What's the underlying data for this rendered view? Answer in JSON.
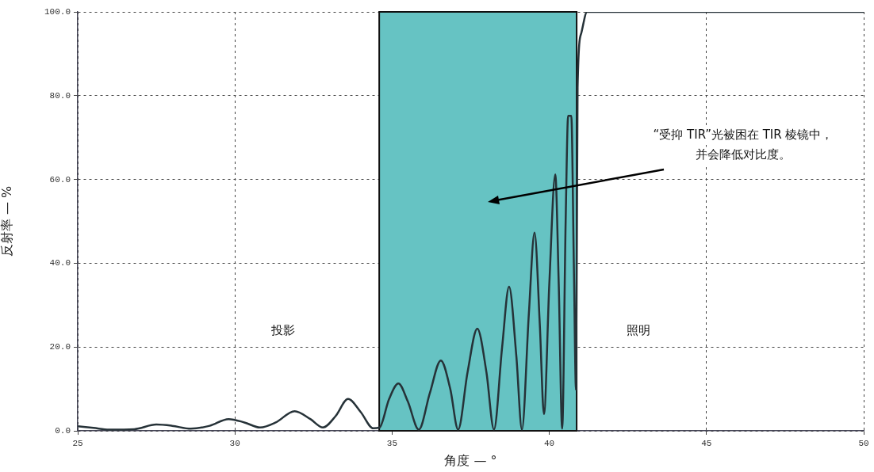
{
  "chart_data": {
    "type": "line",
    "xlabel": "角度 — °",
    "ylabel": "反射率 — %",
    "x": [
      25,
      25.5,
      26,
      26.8,
      27.5,
      28,
      28.6,
      29.2,
      29.8,
      30.3,
      30.8,
      31.3,
      31.9,
      32.4,
      32.8,
      33.2,
      33.6,
      34.0,
      34.4,
      34.6,
      34.9,
      35.2,
      35.5,
      35.85,
      36.2,
      36.55,
      36.85,
      37.1,
      37.4,
      37.71,
      38.0,
      38.24,
      38.5,
      38.72,
      38.95,
      39.13,
      39.35,
      39.53,
      39.7,
      39.83,
      40.0,
      40.19,
      40.3,
      40.41,
      40.52,
      40.6,
      40.7,
      40.78,
      40.85,
      40.9,
      41.02,
      41.2,
      50
    ],
    "series": [
      {
        "color": "#263238",
        "values": [
          1.1,
          0.7,
          0.3,
          0.4,
          1.5,
          1.2,
          0.5,
          1.2,
          2.8,
          2.0,
          0.8,
          2.0,
          4.7,
          2.8,
          0.8,
          3.5,
          7.6,
          4.5,
          0.6,
          0.8,
          7.5,
          11.3,
          7,
          0.3,
          9,
          16.8,
          10,
          0.3,
          14,
          24.4,
          14,
          0.3,
          20,
          34.4,
          18,
          0.3,
          28,
          47.3,
          25,
          4,
          35,
          61.2,
          35,
          0.5,
          50,
          75.2,
          75.2,
          40,
          9.8,
          82,
          95,
          100,
          100
        ]
      }
    ],
    "xlim": [
      25,
      50
    ],
    "xticks": [
      25,
      30,
      35,
      40,
      45,
      50
    ],
    "ylim": [
      0,
      100
    ],
    "yticks": [
      {
        "value": 0,
        "label": "0.0"
      },
      {
        "value": 20,
        "label": "20.0"
      },
      {
        "value": 40,
        "label": "40.0"
      },
      {
        "value": 60,
        "label": "60.0"
      },
      {
        "value": 80,
        "label": "80.0"
      },
      {
        "value": 100,
        "label": "100.0"
      }
    ],
    "grid": true,
    "legend": false,
    "marker": "none",
    "line_style": "solid",
    "bands": [
      {
        "axis": "x",
        "from": 34.59,
        "to": 40.87,
        "color": "#66c3c3"
      }
    ],
    "annotations": [
      "投影",
      "照明",
      "“受抑 TIR”光被困在 TIR 棱镜中，并会降低对比度。"
    ]
  }
}
